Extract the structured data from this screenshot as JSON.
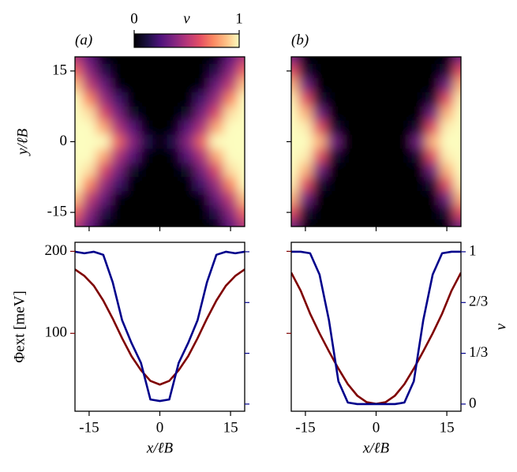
{
  "chart_data": [
    {
      "type": "heatmap",
      "panel_label": "(a)",
      "ylabel": "y/ℓB",
      "colormap": "magma",
      "colorbar": {
        "label": "ν",
        "ticks": [
          0,
          1
        ]
      },
      "x": [
        -18,
        -15,
        -12,
        -9,
        -6,
        -3,
        0,
        3,
        6,
        9,
        12,
        15,
        18
      ],
      "y": [
        18,
        15,
        12,
        9,
        6,
        3,
        0,
        -3,
        -6,
        -9,
        -12,
        -15,
        -18
      ],
      "z": [
        [
          0.49,
          0.28,
          0.01,
          0,
          0,
          0,
          0,
          0,
          0,
          0,
          0.01,
          0.28,
          0.49
        ],
        [
          0.68,
          0.4,
          0.15,
          0,
          0,
          0,
          0,
          0,
          0,
          0,
          0.15,
          0.4,
          0.68
        ],
        [
          0.88,
          0.53,
          0.32,
          0.02,
          0,
          0,
          0,
          0,
          0,
          0.02,
          0.32,
          0.53,
          0.88
        ],
        [
          1,
          0.75,
          0.44,
          0.22,
          0,
          0,
          0,
          0,
          0,
          0.22,
          0.44,
          0.75,
          1
        ],
        [
          1,
          0.94,
          0.6,
          0.36,
          0.08,
          0,
          0,
          0,
          0.08,
          0.36,
          0.6,
          0.94,
          1
        ],
        [
          1,
          1,
          0.82,
          0.49,
          0.28,
          0.01,
          0,
          0.01,
          0.28,
          0.49,
          0.82,
          1,
          1
        ],
        [
          1,
          1,
          1,
          0.68,
          0.4,
          0.15,
          0,
          0.15,
          0.4,
          0.68,
          1,
          1,
          1
        ],
        [
          1,
          1,
          0.82,
          0.49,
          0.28,
          0.01,
          0,
          0.01,
          0.28,
          0.49,
          0.82,
          1,
          1
        ],
        [
          1,
          0.94,
          0.6,
          0.36,
          0.08,
          0,
          0,
          0,
          0.08,
          0.36,
          0.6,
          0.94,
          1
        ],
        [
          1,
          0.75,
          0.44,
          0.22,
          0,
          0,
          0,
          0,
          0,
          0.22,
          0.44,
          0.75,
          1
        ],
        [
          0.88,
          0.53,
          0.32,
          0.02,
          0,
          0,
          0,
          0,
          0,
          0.02,
          0.32,
          0.53,
          0.88
        ],
        [
          0.68,
          0.4,
          0.15,
          0,
          0,
          0,
          0,
          0,
          0,
          0,
          0.15,
          0.4,
          0.68
        ],
        [
          0.49,
          0.28,
          0.01,
          0,
          0,
          0,
          0,
          0,
          0,
          0,
          0.01,
          0.28,
          0.49
        ]
      ],
      "xlim": [
        -18,
        18
      ],
      "ylim": [
        -18,
        18
      ],
      "xticks": [
        -15,
        0,
        15
      ],
      "yticks": [
        -15,
        0,
        15
      ],
      "show_xtick_labels": false,
      "show_ytick_labels": true
    },
    {
      "type": "heatmap",
      "panel_label": "(b)",
      "colormap": "magma",
      "x": [
        -18,
        -15,
        -12,
        -9,
        -6,
        -3,
        0,
        3,
        6,
        9,
        12,
        15,
        18
      ],
      "y": [
        18,
        15,
        12,
        9,
        6,
        3,
        0,
        -3,
        -6,
        -9,
        -12,
        -15,
        -18
      ],
      "z": [
        [
          0.35,
          0,
          0,
          0,
          0,
          0,
          0,
          0,
          0,
          0,
          0,
          0,
          0.35
        ],
        [
          0.62,
          0.1,
          0,
          0,
          0,
          0,
          0,
          0,
          0,
          0,
          0,
          0.1,
          0.62
        ],
        [
          0.85,
          0.35,
          0,
          0,
          0,
          0,
          0,
          0,
          0,
          0,
          0,
          0.35,
          0.85
        ],
        [
          0.97,
          0.62,
          0.1,
          0,
          0,
          0,
          0,
          0,
          0,
          0,
          0.1,
          0.62,
          0.97
        ],
        [
          1,
          0.85,
          0.35,
          0,
          0,
          0,
          0,
          0,
          0,
          0,
          0.35,
          0.85,
          1
        ],
        [
          1,
          0.97,
          0.62,
          0.1,
          0,
          0,
          0,
          0,
          0,
          0.1,
          0.62,
          0.97,
          1
        ],
        [
          1,
          1,
          0.85,
          0.35,
          0,
          0,
          0,
          0,
          0,
          0.35,
          0.85,
          1,
          1
        ],
        [
          1,
          0.97,
          0.62,
          0.1,
          0,
          0,
          0,
          0,
          0,
          0.1,
          0.62,
          0.97,
          1
        ],
        [
          1,
          0.85,
          0.35,
          0,
          0,
          0,
          0,
          0,
          0,
          0,
          0.35,
          0.85,
          1
        ],
        [
          0.97,
          0.62,
          0.1,
          0,
          0,
          0,
          0,
          0,
          0,
          0,
          0.1,
          0.62,
          0.97
        ],
        [
          0.85,
          0.35,
          0,
          0,
          0,
          0,
          0,
          0,
          0,
          0,
          0,
          0.35,
          0.85
        ],
        [
          0.62,
          0.1,
          0,
          0,
          0,
          0,
          0,
          0,
          0,
          0,
          0,
          0.1,
          0.62
        ],
        [
          0.35,
          0,
          0,
          0,
          0,
          0,
          0,
          0,
          0,
          0,
          0,
          0,
          0.35
        ]
      ],
      "xlim": [
        -18,
        18
      ],
      "ylim": [
        -18,
        18
      ],
      "xticks": [
        -15,
        0,
        15
      ],
      "yticks": [
        -15,
        0,
        15
      ],
      "show_xtick_labels": false,
      "show_ytick_labels": false
    },
    {
      "type": "line",
      "xlabel": "x/ℓB",
      "ylabel": "Φext [meV]",
      "x": [
        -18,
        -16,
        -14,
        -12,
        -10,
        -8,
        -6,
        -4,
        -2,
        0,
        2,
        4,
        6,
        8,
        10,
        12,
        14,
        16,
        18
      ],
      "series": [
        {
          "name": "Φext",
          "color": "#7f0000",
          "values": [
            178,
            170,
            158,
            140,
            118,
            94,
            72,
            55,
            42,
            37.5,
            42,
            55,
            72,
            94,
            118,
            140,
            158,
            170,
            178
          ]
        },
        {
          "name": "ν",
          "color": "#00008b",
          "axis": "y2",
          "values": [
            1.0,
            0.99,
            1.0,
            0.98,
            0.8,
            0.55,
            0.4,
            0.27,
            0.03,
            0.02,
            0.03,
            0.27,
            0.4,
            0.55,
            0.8,
            0.98,
            1.0,
            0.99,
            1.0
          ]
        }
      ],
      "xlim": [
        -18,
        18
      ],
      "ylim": [
        5,
        211
      ],
      "y2lim": [
        -0.047,
        1.062
      ],
      "xticks": [
        -15,
        0,
        15
      ],
      "yticks": [
        100,
        200
      ],
      "y2ticks": [
        0,
        0.3333,
        0.6667,
        1
      ],
      "show_ytick_labels": true,
      "show_y2tick_labels": false
    },
    {
      "type": "line",
      "xlabel": "x/ℓB",
      "y2label": "ν",
      "x": [
        -18,
        -16,
        -14,
        -12,
        -10,
        -8,
        -6,
        -4,
        -2,
        0,
        2,
        4,
        6,
        8,
        10,
        12,
        14,
        16,
        18
      ],
      "series": [
        {
          "name": "Φext",
          "color": "#7f0000",
          "values": [
            174,
            152,
            124,
            100,
            78,
            57,
            38,
            24,
            16,
            14,
            16,
            24,
            38,
            57,
            78,
            100,
            124,
            152,
            174
          ]
        },
        {
          "name": "ν",
          "color": "#00008b",
          "axis": "y2",
          "values": [
            1.0,
            1.0,
            0.99,
            0.85,
            0.55,
            0.15,
            0.01,
            0,
            0,
            0,
            0,
            0,
            0.01,
            0.15,
            0.55,
            0.85,
            0.99,
            1.0,
            1.0
          ]
        }
      ],
      "xlim": [
        -18,
        18
      ],
      "ylim": [
        5,
        211
      ],
      "y2lim": [
        -0.047,
        1.062
      ],
      "xticks": [
        -15,
        0,
        15
      ],
      "yticks": [
        100,
        200
      ],
      "y2ticks": [
        0,
        {
          "value": 0.3333,
          "label": "1/3"
        },
        {
          "value": 0.6667,
          "label": "2/3"
        },
        1
      ],
      "show_ytick_labels": false,
      "show_y2tick_labels": true
    }
  ]
}
